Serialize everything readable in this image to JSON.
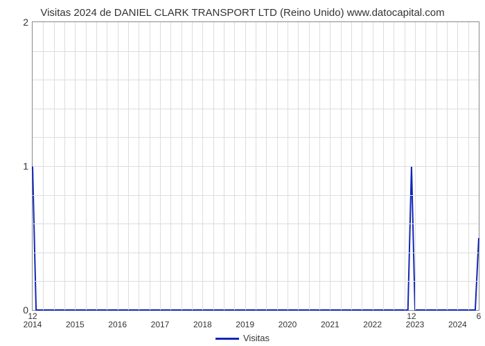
{
  "chart": {
    "type": "line",
    "title": "Visitas 2024 de DANIEL CLARK TRANSPORT LTD (Reino Unido) www.datocapital.com",
    "title_fontsize": 15,
    "title_color": "#333333",
    "background_color": "#ffffff",
    "border_color": "#888888",
    "grid_color": "#dddddd",
    "line_color": "#1126b7",
    "line_width": 2,
    "x": {
      "min": 2014,
      "max": 2024.5,
      "major_ticks": [
        2014,
        2015,
        2016,
        2017,
        2018,
        2019,
        2020,
        2021,
        2022,
        2023,
        2024
      ],
      "major_tick_labels": [
        "2014",
        "2015",
        "2016",
        "2017",
        "2018",
        "2019",
        "2020",
        "2021",
        "2022",
        "2023",
        "2024"
      ],
      "minor_step": 0.25,
      "label_fontsize": 12
    },
    "y": {
      "min": 0,
      "max": 2,
      "major_ticks": [
        0,
        1,
        2
      ],
      "major_tick_labels": [
        "0",
        "1",
        "2"
      ],
      "minor_step": 0.2,
      "label_fontsize": 14
    },
    "series": [
      {
        "name": "Visitas",
        "color": "#1126b7",
        "points": [
          {
            "x": 2014.0,
            "y": 1.0,
            "label": "12"
          },
          {
            "x": 2014.083,
            "y": 0.0
          },
          {
            "x": 2022.833,
            "y": 0.0
          },
          {
            "x": 2022.917,
            "y": 1.0,
            "label": "12"
          },
          {
            "x": 2023.0,
            "y": 0.0
          },
          {
            "x": 2024.417,
            "y": 0.0
          },
          {
            "x": 2024.5,
            "y": 0.5,
            "label": "6"
          }
        ]
      }
    ],
    "legend": {
      "position": "bottom-center",
      "items": [
        {
          "label": "Visitas",
          "color": "#1126b7"
        }
      ]
    }
  }
}
